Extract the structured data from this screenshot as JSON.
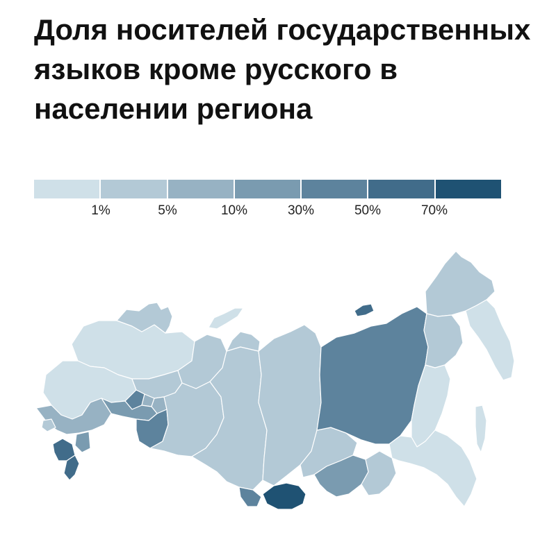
{
  "title": "Доля носителей государственных языков кроме русского в населении региона",
  "legend": {
    "colors": [
      "#cfe0e8",
      "#b3c9d6",
      "#97b2c3",
      "#7a9bb0",
      "#5d839d",
      "#416c8a",
      "#1f5273"
    ],
    "ticks": [
      "1%",
      "5%",
      "10%",
      "30%",
      "50%",
      "70%"
    ]
  },
  "map": {
    "regions": [
      {
        "name": "north-west",
        "class": 0
      },
      {
        "name": "karelia",
        "class": 1
      },
      {
        "name": "central-russia",
        "class": 0
      },
      {
        "name": "volga-west",
        "class": 1
      },
      {
        "name": "chuvashia",
        "class": 4
      },
      {
        "name": "mari-el",
        "class": 2
      },
      {
        "name": "udmurtia",
        "class": 2
      },
      {
        "name": "tatarstan",
        "class": 3
      },
      {
        "name": "bashkortostan",
        "class": 4
      },
      {
        "name": "komi",
        "class": 1
      },
      {
        "name": "ural",
        "class": 1
      },
      {
        "name": "north-caucasus-west",
        "class": 2
      },
      {
        "name": "kalmykia",
        "class": 3
      },
      {
        "name": "north-caucasus-republics",
        "class": 5
      },
      {
        "name": "dagestan",
        "class": 5
      },
      {
        "name": "crimea",
        "class": 1
      },
      {
        "name": "siberia-west",
        "class": 1
      },
      {
        "name": "yamalo-nenets",
        "class": 1
      },
      {
        "name": "altai-republic",
        "class": 4
      },
      {
        "name": "krasnoyarsk",
        "class": 1
      },
      {
        "name": "irkutsk",
        "class": 1
      },
      {
        "name": "tuva",
        "class": 6
      },
      {
        "name": "buryatia",
        "class": 3
      },
      {
        "name": "zabaykalsky",
        "class": 1
      },
      {
        "name": "sakha",
        "class": 4
      },
      {
        "name": "chukotka",
        "class": 1
      },
      {
        "name": "magadan",
        "class": 1
      },
      {
        "name": "kamchatka",
        "class": 0
      },
      {
        "name": "khabarovsk",
        "class": 0
      },
      {
        "name": "primorye-amur",
        "class": 0
      },
      {
        "name": "sakhalin",
        "class": 0
      },
      {
        "name": "novaya-zemlya",
        "class": 0
      },
      {
        "name": "arctic-islands",
        "class": 5
      }
    ]
  }
}
